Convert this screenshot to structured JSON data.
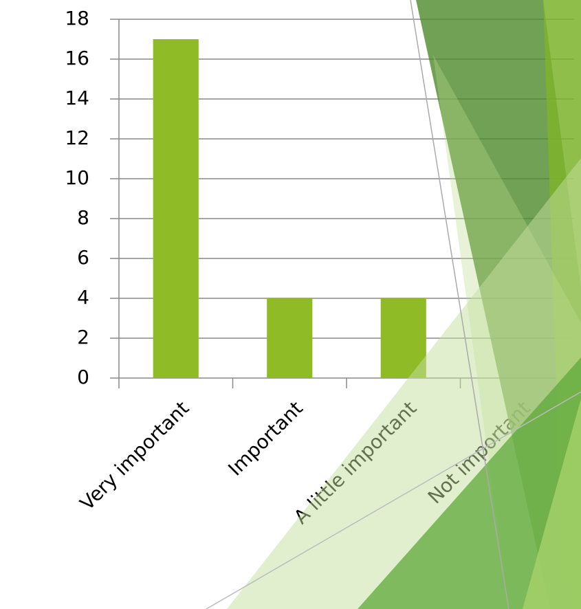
{
  "chart_data": {
    "type": "bar",
    "categories": [
      "Very important",
      "Important",
      "A little important",
      "Not important"
    ],
    "values": [
      17,
      4,
      4,
      0
    ],
    "color": "#8fbc26",
    "ylim": [
      0,
      18
    ],
    "yticks": [
      0,
      2,
      4,
      6,
      8,
      10,
      12,
      14,
      16,
      18
    ],
    "grid": true
  }
}
